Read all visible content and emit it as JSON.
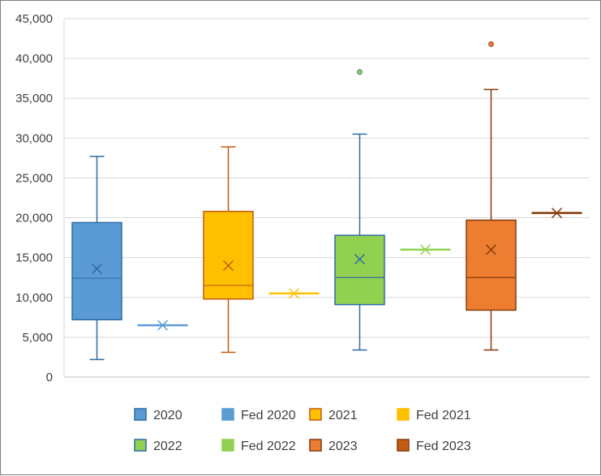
{
  "chart_data": {
    "type": "boxplot",
    "ylim": [
      0,
      45000
    ],
    "yticks": [
      0,
      5000,
      10000,
      15000,
      20000,
      25000,
      30000,
      35000,
      40000,
      45000
    ],
    "ytick_labels": [
      "0",
      "5,000",
      "10,000",
      "15,000",
      "20,000",
      "25,000",
      "30,000",
      "35,000",
      "40,000",
      "45,000"
    ],
    "grid": true,
    "legend_position": "bottom",
    "legend": [
      {
        "label": "2020",
        "fill": "#5b9bd5",
        "stroke": "#2e6ca4"
      },
      {
        "label": "Fed 2020",
        "fill": "#5b9bd5",
        "stroke": "#5b9bd5"
      },
      {
        "label": "2021",
        "fill": "#ffc000",
        "stroke": "#c55a11"
      },
      {
        "label": "Fed 2021",
        "fill": "#ffc000",
        "stroke": "#ffc000"
      },
      {
        "label": "2022",
        "fill": "#92d050",
        "stroke": "#2e6ca4"
      },
      {
        "label": "Fed 2022",
        "fill": "#92d050",
        "stroke": "#92d050"
      },
      {
        "label": "2023",
        "fill": "#ed7d31",
        "stroke": "#843c0c"
      },
      {
        "label": "Fed 2023",
        "fill": "#c55a11",
        "stroke": "#843c0c"
      }
    ],
    "series": [
      {
        "name": "2020",
        "kind": "box",
        "min": 2200,
        "q1": 7200,
        "median": 12400,
        "q3": 19400,
        "max": 27700,
        "mean": 13600,
        "outliers": [],
        "fill": "#5b9bd5",
        "stroke": "#2e6ca4",
        "marker": "#2e6ca4"
      },
      {
        "name": "Fed 2020",
        "kind": "single",
        "value": 6500,
        "color": "#5b9bd5"
      },
      {
        "name": "2021",
        "kind": "box",
        "min": 3100,
        "q1": 9800,
        "median": 11500,
        "q3": 20800,
        "max": 28900,
        "mean": 14000,
        "outliers": [],
        "fill": "#ffc000",
        "stroke": "#c55a11",
        "marker": "#c55a11"
      },
      {
        "name": "Fed 2021",
        "kind": "single",
        "value": 10500,
        "color": "#ffc000"
      },
      {
        "name": "2022",
        "kind": "box",
        "min": 3400,
        "q1": 9100,
        "median": 12500,
        "q3": 17800,
        "max": 30500,
        "mean": 14800,
        "outliers": [
          38300
        ],
        "fill": "#92d050",
        "stroke": "#2e6ca4",
        "marker": "#2e6ca4"
      },
      {
        "name": "Fed 2022",
        "kind": "single",
        "value": 16000,
        "color": "#92d050"
      },
      {
        "name": "2023",
        "kind": "box",
        "min": 3400,
        "q1": 8400,
        "median": 12500,
        "q3": 19700,
        "max": 36100,
        "mean": 16000,
        "outliers": [
          41800
        ],
        "fill": "#ed7d31",
        "stroke": "#843c0c",
        "marker": "#843c0c"
      },
      {
        "name": "Fed 2023",
        "kind": "single",
        "value": 20600,
        "color": "#843c0c"
      }
    ]
  }
}
